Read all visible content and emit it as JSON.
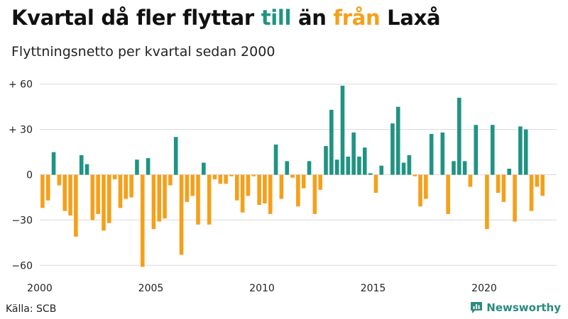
{
  "header": {
    "title_part1": "Kvartal då fler flyttar ",
    "title_till": "till",
    "title_part2": " än ",
    "title_fran": "från",
    "title_part3": " Laxå",
    "subtitle": "Flyttningsnetto per kvartal sedan 2000"
  },
  "footer": {
    "source": "Källa: SCB",
    "brand": "Newsworthy"
  },
  "colors": {
    "positive": "#1f9483",
    "negative": "#f5a01a",
    "grid": "#d9d9d9",
    "text": "#111111"
  },
  "icons": {
    "brand": "newsworthy-logo-icon"
  },
  "chart_data": {
    "type": "bar",
    "title": "Kvartal då fler flyttar till än från Laxå",
    "subtitle": "Flyttningsnetto per kvartal sedan 2000",
    "start_year": 2000,
    "periods_per_year": 4,
    "ylim": [
      -65,
      65
    ],
    "yticks": [
      {
        "value": 60,
        "label": "+ 60"
      },
      {
        "value": 30,
        "label": "+ 30"
      },
      {
        "value": 0,
        "label": "0"
      },
      {
        "value": -30,
        "label": "−30"
      },
      {
        "value": -60,
        "label": "−60"
      }
    ],
    "xticks": [
      {
        "year": 2000,
        "label": "2000"
      },
      {
        "year": 2005,
        "label": "2005"
      },
      {
        "year": 2010,
        "label": "2010"
      },
      {
        "year": 2015,
        "label": "2015"
      },
      {
        "year": 2020,
        "label": "2020"
      }
    ],
    "grid": true,
    "values": [
      -22,
      -17,
      15,
      -7,
      -24,
      -27,
      -41,
      13,
      7,
      -30,
      -26,
      -37,
      -32,
      -3,
      -22,
      -16,
      -15,
      10,
      -61,
      11,
      -36,
      -31,
      -29,
      -7,
      25,
      -53,
      -18,
      -14,
      -33,
      8,
      -33,
      -3,
      -6,
      -6,
      -1,
      -17,
      -25,
      -14,
      -1,
      -20,
      -19,
      -26,
      20,
      -16,
      9,
      -2,
      -21,
      -9,
      9,
      -26,
      -10,
      19,
      43,
      10,
      59,
      12,
      28,
      12,
      18,
      1,
      -12,
      6,
      0,
      34,
      45,
      8,
      13,
      -1,
      -21,
      -16,
      27,
      0,
      28,
      -26,
      9,
      51,
      9,
      -8,
      33,
      0,
      -36,
      33,
      -12,
      -18,
      4,
      -31,
      32,
      30,
      -24,
      -8,
      -14
    ]
  }
}
